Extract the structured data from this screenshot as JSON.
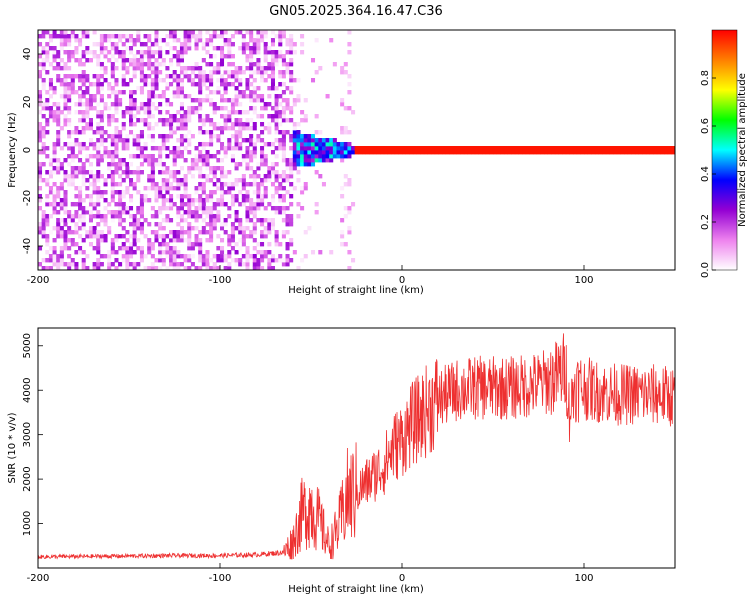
{
  "chart_data": [
    {
      "type": "heatmap",
      "title": "GN05.2025.364.16.47.C36",
      "xlabel": "Height of straight line (km)",
      "ylabel": "Frequency (Hz)",
      "xlim": [
        -200,
        150
      ],
      "ylim": [
        -50,
        50
      ],
      "x_ticks": [
        -200,
        -100,
        0,
        100
      ],
      "y_ticks": [
        -40,
        -20,
        0,
        20,
        40
      ],
      "colorbar": {
        "label": "Normalized spectral amplitude",
        "range": [
          0,
          1
        ],
        "ticks": [
          0.0,
          0.2,
          0.4,
          0.6,
          0.8
        ],
        "colors": [
          "#ffffff",
          "#ee82ee",
          "#9400d3",
          "#0000ff",
          "#00ffff",
          "#00ff00",
          "#ffff00",
          "#ff7f00",
          "#ff0000"
        ]
      },
      "features": {
        "noise_region_x": [
          -200,
          -60
        ],
        "noise_amplitude": 0.25,
        "carrier_frequency": 0,
        "carrier_start_x": -60,
        "carrier_peak_amplitude": 1.0,
        "carrier_peak_x": [
          -25,
          150
        ]
      }
    },
    {
      "type": "line",
      "title": "",
      "xlabel": "Height of straight line (km)",
      "ylabel": "SNR (10 * v/v)",
      "xlim": [
        -200,
        150
      ],
      "ylim": [
        0,
        5400
      ],
      "x_ticks": [
        -200,
        -100,
        0,
        100
      ],
      "y_ticks": [
        1000,
        2000,
        3000,
        4000,
        5000
      ],
      "grid": false,
      "series": [
        {
          "color": "#ee3030",
          "x": [
            -200,
            -150,
            -120,
            -100,
            -80,
            -65,
            -60,
            -55,
            -50,
            -45,
            -40,
            -35,
            -30,
            -25,
            -20,
            -15,
            -10,
            -5,
            0,
            5,
            10,
            15,
            20,
            30,
            40,
            50,
            60,
            70,
            80,
            85,
            90,
            92,
            95,
            100,
            110,
            120,
            130,
            140,
            150
          ],
          "values": [
            250,
            270,
            280,
            280,
            300,
            350,
            600,
            1200,
            1400,
            1000,
            500,
            900,
            1600,
            1700,
            1900,
            2100,
            2300,
            2700,
            2900,
            3200,
            3400,
            3600,
            3800,
            4000,
            4050,
            4050,
            4050,
            4100,
            4200,
            4300,
            4500,
            3500,
            4100,
            4050,
            3950,
            3900,
            3900,
            3900,
            3850
          ]
        }
      ]
    }
  ]
}
